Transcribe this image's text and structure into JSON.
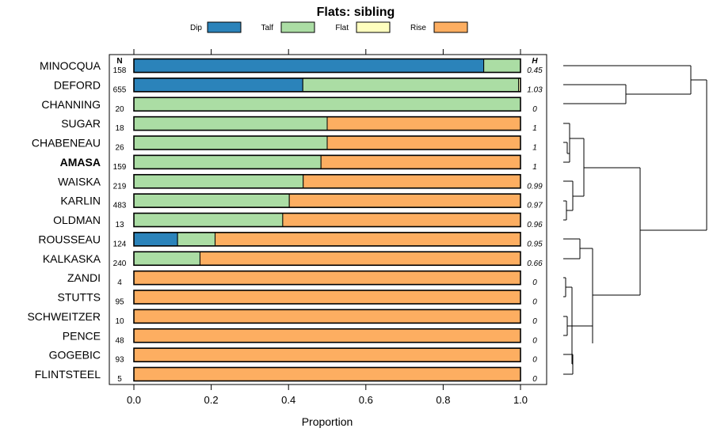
{
  "chart_data": {
    "type": "bar",
    "stacked": true,
    "orientation": "horizontal",
    "title": "Flats: sibling",
    "xlabel": "Proportion",
    "xlim": [
      0,
      1
    ],
    "xticks": [
      "0.0",
      "0.2",
      "0.4",
      "0.6",
      "0.8",
      "1.0"
    ],
    "n_header": "N",
    "h_header": "H",
    "legend": [
      {
        "name": "Dip",
        "color": "#2b83ba"
      },
      {
        "name": "Talf",
        "color": "#abdda4"
      },
      {
        "name": "Flat",
        "color": "#ffffbf"
      },
      {
        "name": "Rise",
        "color": "#fdae61"
      }
    ],
    "categories": [
      "MINOCQUA",
      "DEFORD",
      "CHANNING",
      "SUGAR",
      "CHABENEAU",
      "AMASA",
      "WAISKA",
      "KARLIN",
      "OLDMAN",
      "ROUSSEAU",
      "KALKASKA",
      "ZANDI",
      "STUTTS",
      "SCHWEITZER",
      "PENCE",
      "GOGEBIC",
      "FLINTSTEEL"
    ],
    "bold_category": "AMASA",
    "n": [
      "158",
      "655",
      "20",
      "18",
      "26",
      "159",
      "219",
      "483",
      "13",
      "124",
      "240",
      "4",
      "95",
      "10",
      "48",
      "93",
      "5"
    ],
    "h": [
      "0.45",
      "1.03",
      "0",
      "1",
      "1",
      "1",
      "0.99",
      "0.97",
      "0.96",
      "0.95",
      "0.66",
      "0",
      "0",
      "0",
      "0",
      "0",
      "0"
    ],
    "series": [
      {
        "name": "Dip",
        "values": [
          0.905,
          0.437,
          0,
          0,
          0,
          0,
          0,
          0,
          0,
          0.113,
          0,
          0,
          0,
          0,
          0,
          0,
          0
        ]
      },
      {
        "name": "Talf",
        "values": [
          0.095,
          0.558,
          1,
          0.5,
          0.5,
          0.484,
          0.438,
          0.402,
          0.385,
          0.097,
          0.171,
          0,
          0,
          0,
          0,
          0,
          0
        ]
      },
      {
        "name": "Flat",
        "values": [
          0,
          0.005,
          0,
          0,
          0,
          0,
          0,
          0,
          0,
          0,
          0,
          0,
          0,
          0,
          0,
          0,
          0
        ]
      },
      {
        "name": "Rise",
        "values": [
          0,
          0,
          0,
          0.5,
          0.5,
          0.516,
          0.562,
          0.598,
          0.615,
          0.79,
          0.829,
          1,
          1,
          1,
          1,
          1,
          1
        ]
      }
    ]
  }
}
